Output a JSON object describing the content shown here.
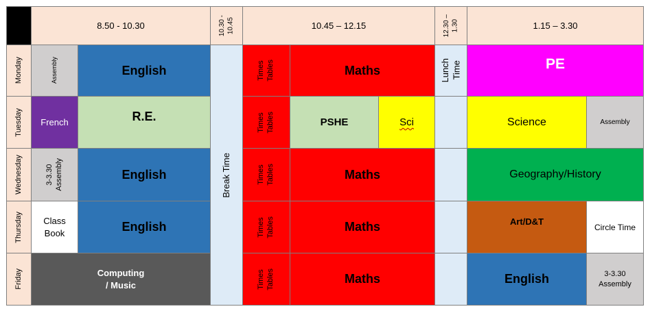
{
  "header": {
    "slot1": "8.50 - 10.30",
    "break": "10.30 -\n10.45",
    "slot2": "10.45 – 12.15",
    "lunch": "12.30 –\n1.30",
    "slot3": "1.15 – 3.30"
  },
  "days": [
    "Monday",
    "Tuesday",
    "Wednesday",
    "Thursday",
    "Friday"
  ],
  "break_label": "Break Time",
  "times_tables": "Times\nTables",
  "lunch_label": "Lunch\nTime",
  "monday": {
    "assembly": "Assembly",
    "english": "English",
    "maths": "Maths",
    "pe": "PE"
  },
  "tuesday": {
    "french": "French",
    "re": "R.E.",
    "pshe": "PSHE",
    "sci": "Sci",
    "science": "Science",
    "assembly": "Assembly"
  },
  "wednesday": {
    "assembly": "3-3.30\nAssembly",
    "english": "English",
    "maths": "Maths",
    "geo": "Geography/History"
  },
  "thursday": {
    "classbook": "Class\nBook",
    "english": "English",
    "maths": "Maths",
    "art": "Art/D&T",
    "circle": "Circle Time"
  },
  "friday": {
    "computing": "Computing\n/ Music",
    "maths": "Maths",
    "english": "English",
    "assembly": "3-3.30\nAssembly"
  },
  "colors": {
    "header": "#fbe4d5",
    "day": "#fbe4d5",
    "english": "#2e74b5",
    "maths": "#ff0000",
    "pe": "#ff00ff",
    "re": "#c5e0b4",
    "french": "#7030a0",
    "grey": "#d0cece",
    "yellow": "#ffff00",
    "green": "#00b050",
    "art": "#c55a11",
    "computing": "#595959",
    "break": "#deebf7",
    "corner": "#000000"
  }
}
